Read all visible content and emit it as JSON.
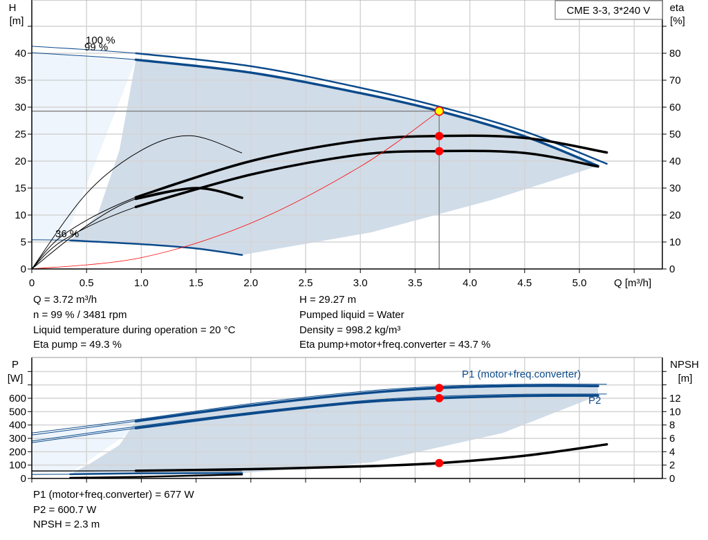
{
  "chart_data": [
    {
      "type": "line",
      "title": "CME 3-3, 3*240 V",
      "xlabel": "Q [m³/h]",
      "ylabel": "H",
      "ylabel_unit": "[m]",
      "y2label": "eta",
      "y2label_unit": "[%]",
      "xlim": [
        0,
        5.7
      ],
      "ylim": [
        0,
        45
      ],
      "y2lim": [
        0,
        90
      ],
      "grid": true,
      "x_ticks": [
        "0",
        "0.5",
        "1.0",
        "1.5",
        "2.0",
        "2.5",
        "3.0",
        "3.5",
        "4.0",
        "4.5",
        "5.0"
      ],
      "y_ticks": [
        "0",
        "5",
        "10",
        "15",
        "20",
        "25",
        "30",
        "35",
        "40"
      ],
      "y2_ticks": [
        "0",
        "10",
        "20",
        "30",
        "40",
        "50",
        "60",
        "70",
        "80"
      ],
      "curve_labels": [
        "100 %",
        "99 %",
        "36 %"
      ],
      "series": [
        {
          "id": "H100",
          "axis": "H",
          "color": "#0b4a8b",
          "thick_from": 0.95,
          "points": [
            [
              0,
              41.3
            ],
            [
              0.95,
              40.0
            ],
            [
              2,
              37.6
            ],
            [
              3,
              33.6
            ],
            [
              3.72,
              30.1
            ],
            [
              4.5,
              25.5
            ],
            [
              5.25,
              19.5
            ]
          ]
        },
        {
          "id": "H99",
          "axis": "H",
          "color": "#0b4a8b",
          "thick_from": 0.95,
          "points": [
            [
              0,
              40.1
            ],
            [
              0.95,
              38.8
            ],
            [
              2,
              36.4
            ],
            [
              3,
              32.6
            ],
            [
              3.72,
              29.27
            ],
            [
              4.5,
              24.6
            ],
            [
              5.17,
              19.1
            ]
          ]
        },
        {
          "id": "H36",
          "axis": "H",
          "color": "#0b4a8b",
          "thick_from": 0.35,
          "points": [
            [
              0,
              5.4
            ],
            [
              0.35,
              5.3
            ],
            [
              1,
              4.6
            ],
            [
              1.5,
              3.8
            ],
            [
              1.92,
              2.6
            ]
          ]
        },
        {
          "id": "eta_pump_100",
          "axis": "eta",
          "color": "#000000",
          "thick_from": 0.95,
          "points": [
            [
              0,
              0
            ],
            [
              0.3,
              13
            ],
            [
              0.95,
              26.6
            ],
            [
              2,
              40
            ],
            [
              3,
              47.6
            ],
            [
              3.72,
              49.3
            ],
            [
              4.5,
              48.6
            ],
            [
              5.25,
              43.2
            ]
          ]
        },
        {
          "id": "eta_total_99",
          "axis": "eta",
          "color": "#000000",
          "thick_from": 0.95,
          "points": [
            [
              0,
              0
            ],
            [
              0.3,
              11
            ],
            [
              0.95,
              23
            ],
            [
              2,
              35
            ],
            [
              3,
              42.4
            ],
            [
              3.72,
              43.7
            ],
            [
              4.5,
              43
            ],
            [
              5.17,
              38
            ]
          ]
        },
        {
          "id": "eta_36",
          "axis": "eta",
          "color": "#000000",
          "thick_from": 0.95,
          "points": [
            [
              0,
              0
            ],
            [
              0.5,
              16
            ],
            [
              0.95,
              26
            ],
            [
              1.5,
              30
            ],
            [
              1.92,
              26.4
            ]
          ]
        },
        {
          "id": "eta_thin",
          "axis": "eta",
          "color": "#000000",
          "thick_from": null,
          "points": [
            [
              0,
              0
            ],
            [
              0.5,
              28
            ],
            [
              1,
              44
            ],
            [
              1.45,
              49.4
            ],
            [
              1.92,
              43
            ]
          ]
        },
        {
          "id": "system_curve",
          "axis": "H",
          "color": "#ff0000",
          "thick_from": null,
          "points": [
            [
              0,
              0
            ],
            [
              1,
              2.1
            ],
            [
              2,
              8.5
            ],
            [
              3,
              19
            ],
            [
              3.72,
              29.27
            ]
          ]
        }
      ],
      "operating_point": {
        "Q": 3.72,
        "H": 29.27,
        "eta_pump": 49.3,
        "eta_total": 43.7
      }
    },
    {
      "type": "line",
      "ylabel": "P",
      "ylabel_unit": "[W]",
      "y2label": "NPSH",
      "y2label_unit": "[m]",
      "xlim": [
        0,
        5.7
      ],
      "ylim": [
        0,
        900
      ],
      "y2lim": [
        0,
        18
      ],
      "grid": true,
      "y_ticks": [
        "0",
        "100",
        "200",
        "300",
        "400",
        "500",
        "600"
      ],
      "y2_ticks": [
        "0",
        "2",
        "4",
        "6",
        "8",
        "10",
        "12"
      ],
      "series": [
        {
          "id": "P1_100",
          "name": "P1 (motor+freq.converter)",
          "axis": "P",
          "color": "#0b4a8b",
          "thick_from": null,
          "points": [
            [
              0,
              340
            ],
            [
              0.95,
              440
            ],
            [
              2,
              560
            ],
            [
              3,
              650
            ],
            [
              3.72,
              690
            ],
            [
              4.5,
              705
            ],
            [
              5.25,
              705
            ]
          ]
        },
        {
          "id": "P1_99",
          "name": "P1 (motor+freq.converter)",
          "axis": "P",
          "color": "#0b4a8b",
          "thick_from": 0.95,
          "points": [
            [
              0,
              325
            ],
            [
              0.95,
              428
            ],
            [
              2,
              545
            ],
            [
              3,
              635
            ],
            [
              3.72,
              677
            ],
            [
              4.5,
              693
            ],
            [
              5.17,
              692
            ]
          ]
        },
        {
          "id": "P2_100",
          "name": "P2",
          "axis": "P",
          "color": "#0b4a8b",
          "thick_from": null,
          "points": [
            [
              0,
              280
            ],
            [
              0.95,
              388
            ],
            [
              2,
              495
            ],
            [
              3,
              580
            ],
            [
              3.72,
              615
            ],
            [
              4.5,
              630
            ],
            [
              5.25,
              632
            ]
          ]
        },
        {
          "id": "P2_99",
          "name": "P2",
          "axis": "P",
          "color": "#0b4a8b",
          "thick_from": 0.95,
          "points": [
            [
              0,
              268
            ],
            [
              0.95,
              376
            ],
            [
              2,
              485
            ],
            [
              3,
              570
            ],
            [
              3.72,
              600.7
            ],
            [
              4.5,
              618
            ],
            [
              5.17,
              620
            ]
          ]
        },
        {
          "id": "P1_36",
          "axis": "P",
          "color": "#555555",
          "thick_from": null,
          "points": [
            [
              0,
              58
            ],
            [
              1,
              58
            ],
            [
              1.92,
              55
            ]
          ]
        },
        {
          "id": "P2_36",
          "axis": "P",
          "color": "#0b4a8b",
          "thick_from": 0.35,
          "points": [
            [
              0,
              30
            ],
            [
              0.35,
              32
            ],
            [
              1,
              38
            ],
            [
              1.92,
              40
            ]
          ]
        },
        {
          "id": "NPSH_36",
          "axis": "NPSH",
          "color": "#000000",
          "thick_from": 0.35,
          "points": [
            [
              0.35,
              0.1
            ],
            [
              1,
              0.25
            ],
            [
              1.92,
              0.6
            ]
          ]
        },
        {
          "id": "NPSH",
          "axis": "NPSH",
          "color": "#000000",
          "thick_from": 0.95,
          "points": [
            [
              0,
              1.1
            ],
            [
              0.95,
              1.15
            ],
            [
              2,
              1.4
            ],
            [
              3,
              1.8
            ],
            [
              3.72,
              2.3
            ],
            [
              4.5,
              3.4
            ],
            [
              5.25,
              5.1
            ]
          ]
        }
      ],
      "operating_point": {
        "Q": 3.72,
        "P1": 677,
        "P2": 600.7,
        "NPSH": 2.3
      }
    }
  ],
  "info_top": {
    "left": [
      "Q = 3.72 m³/h",
      "n = 99 % / 3481 rpm",
      "Liquid temperature during operation = 20 °C",
      "Eta pump = 49.3 %"
    ],
    "right": [
      "H = 29.27 m",
      "Pumped liquid = Water",
      "Density = 998.2 kg/m³",
      "Eta pump+motor+freq.converter = 43.7 %"
    ]
  },
  "info_bottom": [
    "P1 (motor+freq.converter) = 677 W",
    "P2 = 600.7 W",
    "NPSH = 2.3 m"
  ],
  "colors": {
    "curve_blue": "#0b4a8b",
    "area": "#d0dce8",
    "area_light": "#eef5fc",
    "marker": "#ff0000",
    "op_point_fill": "#ffff00",
    "grid": "#d4d4d4"
  }
}
